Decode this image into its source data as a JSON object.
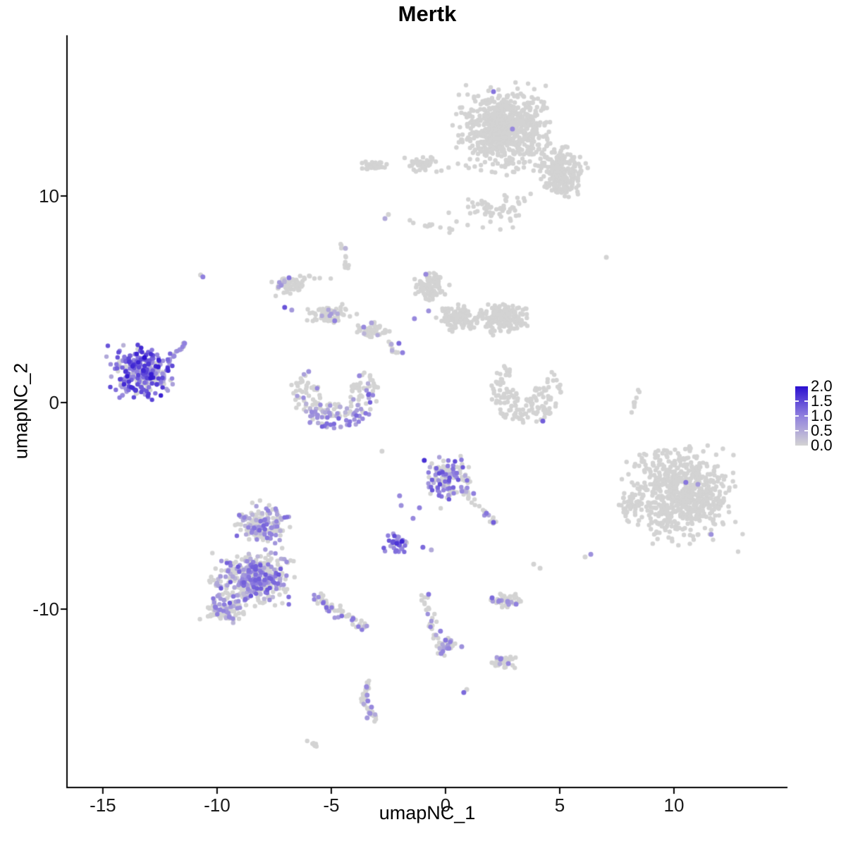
{
  "chart_data": {
    "type": "scatter",
    "title": "Mertk",
    "xlabel": "umapNC_1",
    "ylabel": "umapNC_2",
    "xlim": [
      -16.57,
      14.97
    ],
    "ylim": [
      -18.63,
      17.78
    ],
    "x_ticks": [
      -15,
      -10,
      -5,
      0,
      5,
      10
    ],
    "x_tick_labels": [
      "-15",
      "-10",
      "-5",
      "0",
      "5",
      "10"
    ],
    "y_ticks": [
      -10,
      0,
      10
    ],
    "y_tick_labels": [
      "-10",
      "0",
      "10"
    ],
    "grid": false,
    "legend": {
      "position": "right",
      "breaks": [
        2.0,
        1.5,
        1.0,
        0.5,
        0.0
      ],
      "labels": [
        "2.0",
        "1.5",
        "1.0",
        "0.5",
        "0.0"
      ],
      "colors": {
        "low": "#d3d3d3",
        "mid": "#9080de",
        "high": "#2b10d0"
      }
    },
    "point_style": {
      "radius_px": 3.2,
      "gray": "#d3d3d3"
    },
    "axis_color": "#000000",
    "tick_text_color": "#1a1a1a",
    "clusters": [
      {
        "t": "b",
        "x": -13.33,
        "y": 1.47,
        "rx": 1.85,
        "ry": 1.62,
        "n": 300,
        "pf": 0.78,
        "e": [
          0.4,
          1.9
        ]
      },
      {
        "t": "s",
        "x1": -12.25,
        "y1": 1.85,
        "x2": -11.35,
        "y2": 2.95,
        "w": 0.18,
        "n": 14,
        "pf": 0.8,
        "e": [
          0.5,
          1.2
        ]
      },
      {
        "t": "b",
        "x": 2.6,
        "y": 13.3,
        "rx": 2.5,
        "ry": 2.6,
        "n": 700,
        "pf": 0,
        "e": [
          0,
          0
        ]
      },
      {
        "t": "b",
        "x": 5.1,
        "y": 11.1,
        "rx": 1.35,
        "ry": 1.6,
        "n": 220,
        "pf": 0,
        "e": [
          0,
          0
        ]
      },
      {
        "t": "b",
        "x": 2.1,
        "y": 9.3,
        "rx": 2.4,
        "ry": 1.2,
        "n": 60,
        "pf": 0,
        "e": [
          0,
          0
        ]
      },
      {
        "t": "b",
        "x": -3.0,
        "y": 11.5,
        "rx": 0.9,
        "ry": 0.5,
        "n": 30,
        "pf": 0,
        "e": [
          0,
          0
        ]
      },
      {
        "t": "b",
        "x": -0.9,
        "y": 11.6,
        "rx": 1.25,
        "ry": 0.6,
        "n": 40,
        "pf": 0,
        "e": [
          0,
          0
        ]
      },
      {
        "t": "b",
        "x": -0.4,
        "y": 8.7,
        "rx": 1.5,
        "ry": 0.9,
        "n": 12,
        "pf": 0,
        "e": [
          0,
          0
        ]
      },
      {
        "t": "b",
        "x": -6.9,
        "y": 5.66,
        "rx": 0.95,
        "ry": 0.6,
        "n": 55,
        "pf": 0.04,
        "e": [
          0.3,
          0.8
        ]
      },
      {
        "t": "b",
        "x": -5.0,
        "y": 4.3,
        "rx": 1.25,
        "ry": 0.55,
        "n": 70,
        "pf": 0.04,
        "e": [
          0.3,
          0.8
        ]
      },
      {
        "t": "b",
        "x": -3.15,
        "y": 3.5,
        "rx": 0.95,
        "ry": 0.5,
        "n": 50,
        "pf": 0.06,
        "e": [
          0.3,
          0.8
        ]
      },
      {
        "t": "s",
        "x1": -2.6,
        "y1": 3.1,
        "x2": -2.1,
        "y2": 2.4,
        "w": 0.22,
        "n": 12,
        "pf": 0.1,
        "e": [
          0.3,
          0.9
        ]
      },
      {
        "t": "s",
        "x1": -4.55,
        "y1": 7.7,
        "x2": -4.3,
        "y2": 6.5,
        "w": 0.2,
        "n": 10,
        "pf": 0,
        "e": [
          0,
          0
        ]
      },
      {
        "t": "s",
        "x1": -6.35,
        "y1": 6.1,
        "x2": -4.9,
        "y2": 5.95,
        "w": 0.15,
        "n": 8,
        "pf": 0,
        "e": [
          0,
          0
        ]
      },
      {
        "t": "b",
        "x": -0.65,
        "y": 5.6,
        "rx": 0.85,
        "ry": 1.05,
        "n": 90,
        "pf": 0,
        "e": [
          0,
          0
        ]
      },
      {
        "t": "b",
        "x": 0.55,
        "y": 4.1,
        "rx": 1.1,
        "ry": 0.9,
        "n": 130,
        "pf": 0,
        "e": [
          0,
          0
        ]
      },
      {
        "t": "b",
        "x": 2.5,
        "y": 4.1,
        "rx": 1.45,
        "ry": 0.95,
        "n": 170,
        "pf": 0,
        "e": [
          0,
          0
        ]
      },
      {
        "t": "a",
        "x": -4.85,
        "y": 0.62,
        "r0": 1.35,
        "r1": 1.95,
        "a0": 150,
        "a1": 395,
        "n": 100,
        "pf": 0.9,
        "e": [
          0.3,
          1.4
        ]
      },
      {
        "t": "a",
        "x": -4.85,
        "y": 0.62,
        "r0": 0.7,
        "r1": 1.35,
        "a0": 160,
        "a1": 380,
        "n": 78,
        "pf": 0.25,
        "e": [
          0.3,
          0.9
        ]
      },
      {
        "t": "a",
        "x": 3.5,
        "y": 0.55,
        "r0": 1.0,
        "r1": 1.55,
        "a0": 150,
        "a1": 400,
        "n": 85,
        "pf": 0,
        "e": [
          0,
          0
        ]
      },
      {
        "t": "a",
        "x": 3.5,
        "y": 0.55,
        "r0": 0.4,
        "r1": 1.0,
        "a0": 170,
        "a1": 380,
        "n": 55,
        "pf": 0,
        "e": [
          0,
          0
        ]
      },
      {
        "t": "b",
        "x": 2.6,
        "y": 1.4,
        "rx": 0.55,
        "ry": 0.45,
        "n": 10,
        "pf": 0,
        "e": [
          0,
          0
        ]
      },
      {
        "t": "s",
        "x1": 8.12,
        "y1": -0.45,
        "x2": 8.55,
        "y2": 0.85,
        "w": 0.12,
        "n": 9,
        "pf": 0,
        "e": [
          0,
          0
        ]
      },
      {
        "t": "b",
        "x": 10.35,
        "y": -4.4,
        "rx": 2.9,
        "ry": 2.95,
        "n": 640,
        "pf": 0,
        "e": [
          0,
          0
        ]
      },
      {
        "t": "b",
        "x": 8.15,
        "y": -4.9,
        "rx": 0.85,
        "ry": 0.9,
        "n": 45,
        "pf": 0,
        "e": [
          0,
          0
        ]
      },
      {
        "t": "b",
        "x": 8.7,
        "y": -2.9,
        "rx": 0.9,
        "ry": 0.6,
        "n": 12,
        "pf": 0,
        "e": [
          0,
          0
        ]
      },
      {
        "t": "b",
        "x": -8.1,
        "y": -5.95,
        "rx": 1.55,
        "ry": 1.4,
        "n": 150,
        "pf": 0.45,
        "e": [
          0.3,
          1.3
        ]
      },
      {
        "t": "b",
        "x": -8.4,
        "y": -8.5,
        "rx": 2.3,
        "ry": 1.7,
        "n": 380,
        "pf": 0.45,
        "e": [
          0.3,
          1.4
        ]
      },
      {
        "t": "b",
        "x": -9.7,
        "y": -10.0,
        "rx": 1.4,
        "ry": 0.85,
        "n": 90,
        "pf": 0.4,
        "e": [
          0.3,
          1.1
        ]
      },
      {
        "t": "s",
        "x1": -5.9,
        "y1": -9.3,
        "x2": -3.5,
        "y2": -10.9,
        "w": 0.38,
        "n": 60,
        "pf": 0.3,
        "e": [
          0.3,
          1.2
        ]
      },
      {
        "t": "b",
        "x": 0.1,
        "y": -3.7,
        "rx": 1.25,
        "ry": 1.5,
        "n": 130,
        "pf": 0.42,
        "e": [
          0.4,
          1.5
        ]
      },
      {
        "t": "s",
        "x1": 0.8,
        "y1": -4.3,
        "x2": 2.2,
        "y2": -5.9,
        "w": 0.25,
        "n": 22,
        "pf": 0.15,
        "e": [
          0.4,
          1.0
        ]
      },
      {
        "t": "b",
        "x": -2.16,
        "y": -6.85,
        "rx": 0.68,
        "ry": 0.58,
        "n": 34,
        "pf": 0.82,
        "e": [
          0.5,
          1.7
        ]
      },
      {
        "t": "s",
        "x1": -1.0,
        "y1": -9.4,
        "x2": -0.1,
        "y2": -12.2,
        "w": 0.28,
        "n": 40,
        "pf": 0.12,
        "e": [
          0.4,
          1.0
        ]
      },
      {
        "t": "b",
        "x": 0.2,
        "y": -11.7,
        "rx": 0.55,
        "ry": 0.5,
        "n": 22,
        "pf": 0.2,
        "e": [
          0.4,
          1.0
        ]
      },
      {
        "t": "b",
        "x": 2.6,
        "y": -9.55,
        "rx": 0.85,
        "ry": 0.5,
        "n": 45,
        "pf": 0.12,
        "e": [
          0.4,
          0.9
        ]
      },
      {
        "t": "b",
        "x": 2.5,
        "y": -12.55,
        "rx": 0.75,
        "ry": 0.42,
        "n": 32,
        "pf": 0.1,
        "e": [
          0.4,
          0.9
        ]
      },
      {
        "t": "s",
        "x1": -3.4,
        "y1": -13.5,
        "x2": -3.62,
        "y2": -14.5,
        "w": 0.16,
        "n": 22,
        "pf": 0.15,
        "e": [
          0.4,
          1.0
        ]
      },
      {
        "t": "s",
        "x1": -3.62,
        "y1": -14.5,
        "x2": -2.95,
        "y2": -15.45,
        "w": 0.16,
        "n": 20,
        "pf": 0.15,
        "e": [
          0.4,
          1.0
        ]
      },
      {
        "t": "s",
        "x1": -6.2,
        "y1": -16.3,
        "x2": -5.6,
        "y2": -16.65,
        "w": 0.12,
        "n": 10,
        "pf": 0,
        "e": [
          0,
          0
        ]
      }
    ],
    "highlights": [
      [
        2.1,
        15.05,
        1.1
      ],
      [
        2.93,
        13.24,
        0.9
      ],
      [
        -2.65,
        8.91,
        0.5
      ],
      [
        -10.62,
        6.08,
        1.0
      ],
      [
        -6.85,
        6.04,
        1.1
      ],
      [
        -4.38,
        7.47,
        0.4
      ],
      [
        -7.04,
        4.61,
        1.4
      ],
      [
        -6.73,
        4.48,
        0.7
      ],
      [
        -4.85,
        3.96,
        1.0
      ],
      [
        -3.58,
        3.65,
        0.9
      ],
      [
        -3.24,
        3.86,
        0.6
      ],
      [
        -0.86,
        6.21,
        0.9
      ],
      [
        -0.74,
        4.44,
        0.8
      ],
      [
        -1.36,
        4.06,
        0.9
      ],
      [
        -2.04,
        2.87,
        1.2
      ],
      [
        -1.88,
        2.42,
        1.0
      ],
      [
        -5.99,
        1.5,
        0.8
      ],
      [
        -3.77,
        1.3,
        0.9
      ],
      [
        4.26,
        -0.89,
        1.3
      ],
      [
        10.52,
        -3.86,
        1.1
      ],
      [
        11.05,
        -3.96,
        0.7
      ],
      [
        11.63,
        -6.38,
        0.8
      ],
      [
        -0.93,
        -2.8,
        1.7
      ],
      [
        1.23,
        -4.4,
        1.0
      ],
      [
        1.79,
        -5.36,
        1.1
      ],
      [
        2.1,
        -5.8,
        1.3
      ],
      [
        -1.14,
        -5.09,
        1.0
      ],
      [
        -1.42,
        -5.6,
        0.9
      ],
      [
        -0.99,
        -7.0,
        1.2
      ],
      [
        -0.62,
        -7.13,
        0.5
      ],
      [
        -1.91,
        -6.72,
        1.8
      ],
      [
        6.36,
        -7.34,
        0.8
      ],
      [
        -0.74,
        -9.28,
        1.1
      ],
      [
        -0.22,
        -11.06,
        1.0
      ],
      [
        0.0,
        -11.5,
        1.1
      ],
      [
        -0.19,
        -12.15,
        0.9
      ],
      [
        0.71,
        -11.81,
        0.8
      ],
      [
        2.04,
        -9.45,
        1.2
      ],
      [
        2.35,
        -9.59,
        0.9
      ],
      [
        2.72,
        -9.62,
        0.8
      ],
      [
        3.09,
        -9.76,
        1.0
      ],
      [
        2.41,
        -12.42,
        1.0
      ],
      [
        2.75,
        -12.63,
        0.9
      ],
      [
        0.8,
        -14.03,
        1.2
      ],
      [
        -3.46,
        -13.75,
        0.9
      ],
      [
        -3.43,
        -14.16,
        0.8
      ],
      [
        -3.4,
        -14.44,
        1.0
      ],
      [
        -3.24,
        -14.74,
        0.9
      ],
      [
        -3.3,
        -15.05,
        0.8
      ],
      [
        -3.43,
        -15.26,
        0.7
      ],
      [
        -2.01,
        -4.51,
        0.9
      ],
      [
        -1.94,
        -4.98,
        0.8
      ],
      [
        -13.18,
        2.18,
        2.0
      ],
      [
        -12.9,
        1.2,
        1.9
      ],
      [
        -11.88,
        2.25,
        0.9
      ],
      [
        -11.63,
        2.56,
        0.8
      ],
      [
        -11.42,
        2.87,
        1.0
      ],
      [
        7.04,
        7.03,
        0
      ],
      [
        6.11,
        -7.47,
        0
      ],
      [
        3.86,
        -7.82,
        0
      ],
      [
        4.14,
        -8.02,
        0
      ],
      [
        0.93,
        -13.89,
        0
      ],
      [
        -2.78,
        -2.35,
        0
      ],
      [
        -2.5,
        9.1,
        0
      ],
      [
        -10.72,
        6.18,
        0
      ]
    ]
  }
}
